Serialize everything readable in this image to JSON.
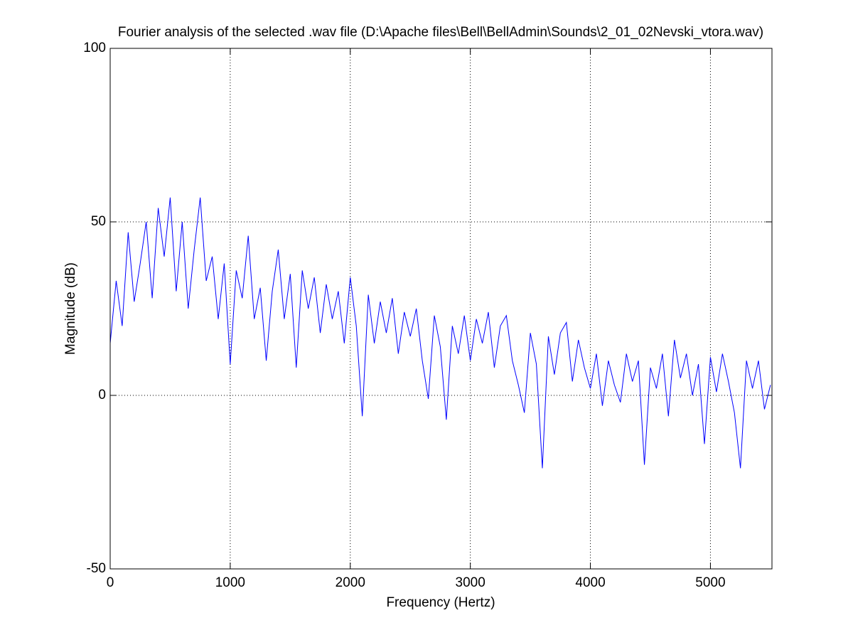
{
  "chart_data": {
    "type": "line",
    "title": "Fourier analysis of the selected .wav file (D:\\Apache files\\Bell\\BellAdmin\\Sounds\\2_01_02Nevski_vtora.wav)",
    "x_label": "Frequency (Hertz)",
    "y_label": "Magnitude (dB)",
    "x": [
      0,
      50,
      100,
      150,
      200,
      250,
      300,
      350,
      400,
      450,
      500,
      550,
      600,
      650,
      700,
      750,
      800,
      850,
      900,
      950,
      1000,
      1050,
      1100,
      1150,
      1200,
      1250,
      1300,
      1350,
      1400,
      1450,
      1500,
      1550,
      1600,
      1650,
      1700,
      1750,
      1800,
      1850,
      1900,
      1950,
      2000,
      2050,
      2100,
      2150,
      2200,
      2250,
      2300,
      2350,
      2400,
      2450,
      2500,
      2550,
      2600,
      2650,
      2700,
      2750,
      2800,
      2850,
      2900,
      2950,
      3000,
      3050,
      3100,
      3150,
      3200,
      3250,
      3300,
      3350,
      3400,
      3450,
      3500,
      3550,
      3600,
      3650,
      3700,
      3750,
      3800,
      3850,
      3900,
      3950,
      4000,
      4050,
      4100,
      4150,
      4200,
      4250,
      4300,
      4350,
      4400,
      4450,
      4500,
      4550,
      4600,
      4650,
      4700,
      4750,
      4800,
      4850,
      4900,
      4950,
      5000,
      5050,
      5100,
      5150,
      5200,
      5250,
      5300,
      5350,
      5400,
      5450,
      5500
    ],
    "values": [
      15,
      33,
      20,
      47,
      27,
      38,
      50,
      28,
      54,
      40,
      57,
      30,
      50,
      25,
      42,
      57,
      33,
      40,
      22,
      38,
      9,
      36,
      28,
      46,
      22,
      31,
      10,
      30,
      42,
      22,
      35,
      8,
      36,
      25,
      34,
      18,
      32,
      22,
      30,
      15,
      34,
      20,
      -6,
      29,
      15,
      27,
      18,
      28,
      12,
      24,
      17,
      25,
      10,
      -1,
      23,
      14,
      -7,
      20,
      12,
      23,
      10,
      22,
      15,
      24,
      8,
      20,
      23,
      10,
      3,
      -5,
      18,
      9,
      -21,
      17,
      6,
      18,
      21,
      4,
      16,
      8,
      2,
      12,
      -3,
      10,
      3,
      -2,
      12,
      4,
      10,
      -20,
      8,
      2,
      12,
      -6,
      16,
      5,
      12,
      0,
      9,
      -14,
      11,
      1,
      12,
      4,
      -5,
      -21,
      10,
      2,
      10,
      -4,
      3
    ],
    "color": "#0000ff",
    "xlim": [
      0,
      5512.5
    ],
    "ylim": [
      -50,
      100
    ],
    "xticks": [
      0,
      1000,
      2000,
      3000,
      4000,
      5000
    ],
    "yticks": [
      -50,
      0,
      50,
      100
    ],
    "grid": true
  }
}
